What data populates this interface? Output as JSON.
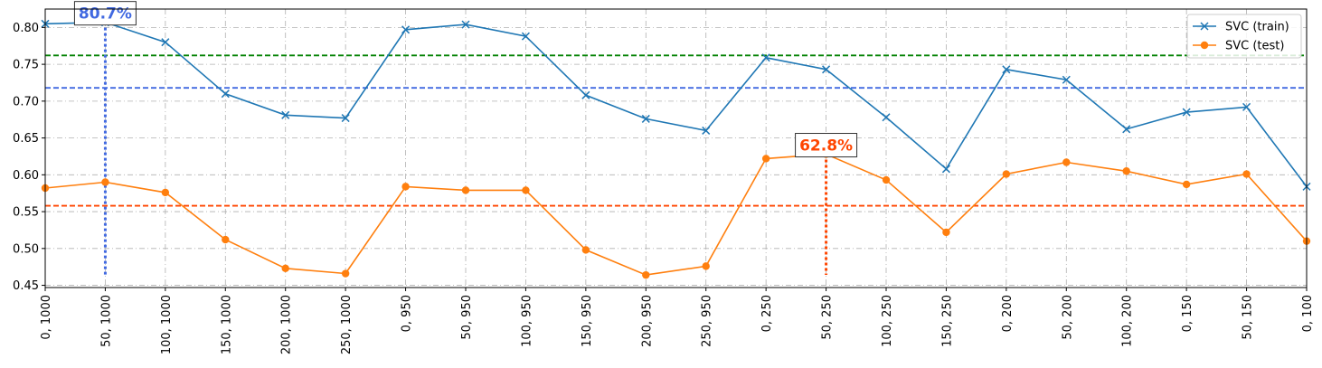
{
  "chart_data": {
    "type": "line",
    "categories": [
      "0, 1000",
      "50, 1000",
      "100, 1000",
      "150, 1000",
      "200, 1000",
      "250, 1000",
      "0, 950",
      "50, 950",
      "100, 950",
      "150, 950",
      "200, 950",
      "250, 950",
      "0, 250",
      "50, 250",
      "100, 250",
      "150, 250",
      "0, 200",
      "50, 200",
      "100, 200",
      "0, 150",
      "50, 150",
      "0, 100"
    ],
    "series": [
      {
        "name": "SVC (train)",
        "color": "#1f77b4",
        "marker": "x",
        "values": [
          0.805,
          0.807,
          0.78,
          0.71,
          0.681,
          0.677,
          0.797,
          0.804,
          0.788,
          0.708,
          0.676,
          0.66,
          0.759,
          0.743,
          0.678,
          0.608,
          0.743,
          0.729,
          0.662,
          0.685,
          0.692,
          0.584
        ]
      },
      {
        "name": "SVC (test)",
        "color": "#ff7f0e",
        "marker": "o",
        "values": [
          0.582,
          0.59,
          0.576,
          0.512,
          0.473,
          0.466,
          0.584,
          0.579,
          0.579,
          0.498,
          0.464,
          0.476,
          0.622,
          0.628,
          0.593,
          0.522,
          0.601,
          0.617,
          0.605,
          0.587,
          0.601,
          0.51
        ]
      }
    ],
    "reference_lines": [
      {
        "value": 0.762,
        "color": "#008000"
      },
      {
        "value": 0.718,
        "color": "#4169e1"
      },
      {
        "value": 0.558,
        "color": "#ff4500"
      }
    ],
    "annotations": [
      {
        "text": "80.7%",
        "category_index": 1,
        "value": 0.807,
        "color": "#4169e1"
      },
      {
        "text": "62.8%",
        "category_index": 13,
        "value": 0.628,
        "color": "#ff4500"
      }
    ],
    "yticks": [
      "0.45",
      "0.50",
      "0.55",
      "0.60",
      "0.65",
      "0.70",
      "0.75",
      "0.80"
    ],
    "ylim": [
      0.447,
      0.825
    ],
    "grid": true,
    "legend_position": "top-right"
  }
}
